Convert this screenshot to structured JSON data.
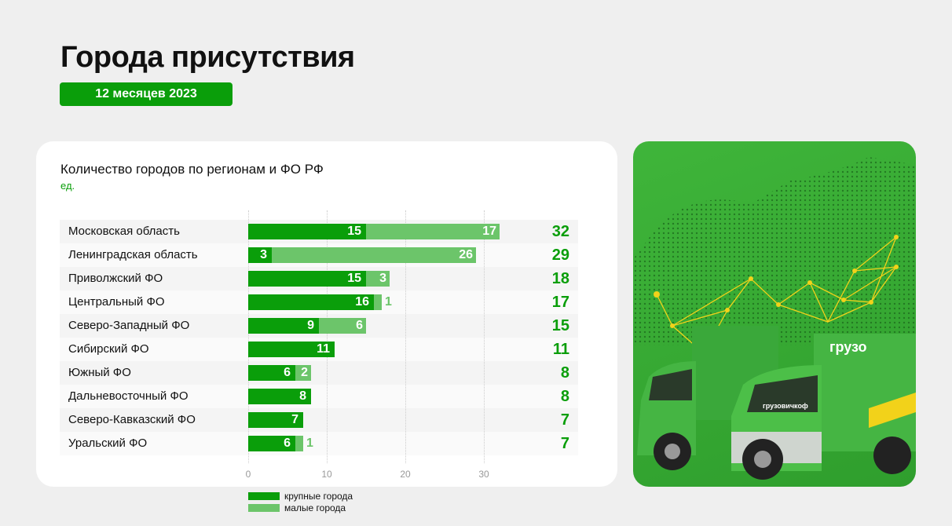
{
  "title": "Города присутствия",
  "badge": "12 месяцев 2023",
  "card": {
    "title": "Количество городов по регионам и ФО РФ",
    "unit": "ед."
  },
  "colors": {
    "large": "#0a9e0a",
    "small": "#6cc56a",
    "total": "#0a9e0a"
  },
  "chart_data": {
    "type": "bar",
    "orientation": "horizontal-stacked",
    "title": "Количество городов по регионам и ФО РФ",
    "ylabel": "ед.",
    "categories": [
      "Московская область",
      "Ленинградская область",
      "Приволжский ФО",
      "Центральный ФО",
      "Северо-Западный ФО",
      "Сибирский ФО",
      "Южный ФО",
      "Дальневосточный ФО",
      "Северо-Кавказский ФО",
      "Уральский ФО"
    ],
    "series": [
      {
        "name": "крупные города",
        "values": [
          15,
          3,
          15,
          16,
          9,
          11,
          6,
          8,
          7,
          6
        ]
      },
      {
        "name": "малые города",
        "values": [
          17,
          26,
          3,
          1,
          6,
          0,
          2,
          0,
          0,
          1
        ]
      }
    ],
    "totals": [
      32,
      29,
      18,
      17,
      15,
      11,
      8,
      8,
      7,
      7
    ],
    "xticks": [
      "0",
      "10",
      "20",
      "30"
    ],
    "xlim": [
      0,
      36
    ],
    "legend": "bottom",
    "grid": true
  },
  "photo": {
    "logo_text": "грузовичкоф"
  }
}
